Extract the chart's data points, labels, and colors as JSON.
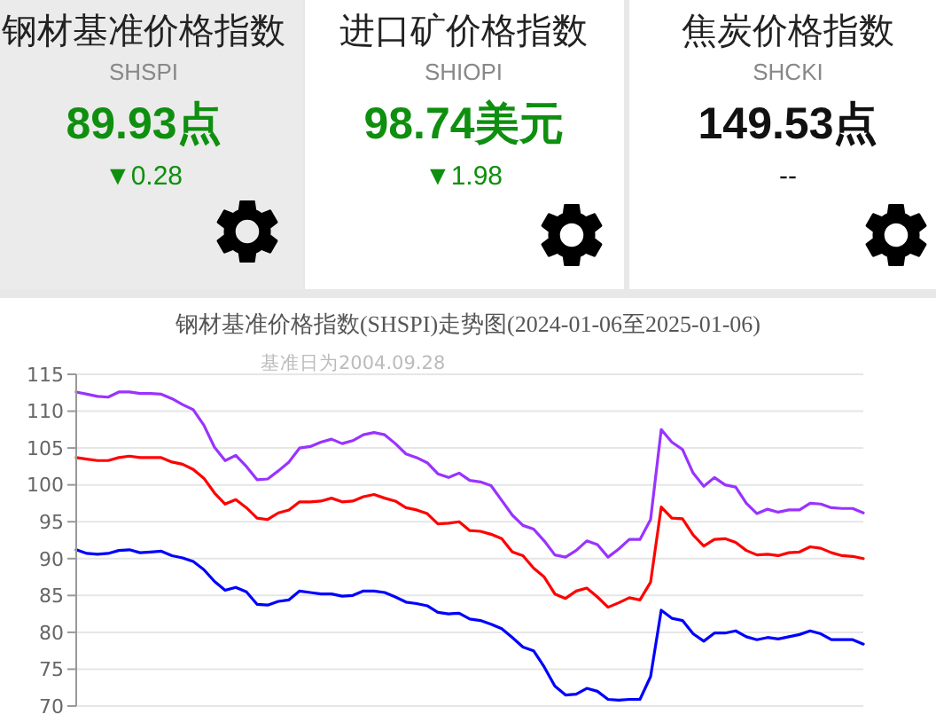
{
  "chart_data": [
    {
      "type": "other",
      "title": "钢材基准价格指数",
      "subtitle": "SHSPI",
      "annotations": [
        "89.93点",
        "▼0.28"
      ],
      "color": "#0f8f0f"
    },
    {
      "type": "other",
      "title": "进口矿价格指数",
      "subtitle": "SHIOPI",
      "annotations": [
        "98.74美元",
        "▼1.98"
      ],
      "color": "#0f8f0f"
    },
    {
      "type": "other",
      "title": "焦炭价格指数",
      "subtitle": "SHCKI",
      "annotations": [
        "149.53点",
        "--"
      ],
      "color": "#111111"
    },
    {
      "type": "line",
      "title": "钢材基准价格指数(SHSPI)走势图(2024-01-06至2025-01-06)",
      "subtitle": "基准日为2004.09.28",
      "categories": [
        null,
        null,
        null,
        null,
        null,
        null,
        null,
        null,
        null,
        null,
        null,
        null,
        null,
        null,
        null,
        null,
        null,
        null,
        null,
        null,
        null,
        null,
        null,
        null,
        null,
        null,
        null,
        null,
        null,
        null,
        null,
        null,
        null,
        null,
        null,
        null,
        null,
        null,
        null,
        null,
        null,
        null,
        null,
        null,
        null,
        null,
        null,
        null,
        null,
        null,
        null,
        null,
        null,
        null,
        null,
        null,
        null,
        null,
        null,
        null,
        null,
        null,
        null,
        null,
        null,
        null,
        null,
        null,
        null,
        null,
        null,
        null,
        null,
        null,
        null
      ],
      "series": [
        {
          "color": "#9933ff",
          "values": [
            112.6,
            112.3,
            112.0,
            111.9,
            112.6,
            112.6,
            112.4,
            112.4,
            112.3,
            111.7,
            110.9,
            110.2,
            108.1,
            105.1,
            103.3,
            104.0,
            102.5,
            100.7,
            100.8,
            101.9,
            103.1,
            105.0,
            105.2,
            105.8,
            106.2,
            105.6,
            106.0,
            106.8,
            107.1,
            106.8,
            105.6,
            104.2,
            103.7,
            103.0,
            101.5,
            101.0,
            101.6,
            100.6,
            100.4,
            99.9,
            97.9,
            95.9,
            94.5,
            94.0,
            92.4,
            90.5,
            90.2,
            91.1,
            92.4,
            91.9,
            90.2,
            91.3,
            92.6,
            92.6,
            95.3,
            107.5,
            105.8,
            104.8,
            101.6,
            99.8,
            101.0,
            100.0,
            99.7,
            97.5,
            96.1,
            96.7,
            96.3,
            96.6,
            96.6,
            97.5,
            97.4,
            96.9,
            96.8,
            96.8,
            96.2
          ]
        },
        {
          "color": "#ff0000",
          "values": [
            103.7,
            103.5,
            103.3,
            103.3,
            103.7,
            103.9,
            103.7,
            103.7,
            103.7,
            103.1,
            102.8,
            102.1,
            100.9,
            98.9,
            97.4,
            98.0,
            96.9,
            95.5,
            95.3,
            96.2,
            96.6,
            97.7,
            97.7,
            97.8,
            98.2,
            97.7,
            97.8,
            98.4,
            98.7,
            98.2,
            97.8,
            96.9,
            96.6,
            96.1,
            94.7,
            94.8,
            95.0,
            93.8,
            93.7,
            93.3,
            92.7,
            90.9,
            90.4,
            88.7,
            87.5,
            85.2,
            84.6,
            85.6,
            86.0,
            84.8,
            83.4,
            84.0,
            84.7,
            84.4,
            86.8,
            97.0,
            95.5,
            95.4,
            93.2,
            91.7,
            92.6,
            92.7,
            92.2,
            91.1,
            90.5,
            90.6,
            90.4,
            90.8,
            90.9,
            91.6,
            91.4,
            90.8,
            90.4,
            90.3,
            90.0
          ]
        },
        {
          "color": "#0000ff",
          "values": [
            91.2,
            90.7,
            90.6,
            90.7,
            91.1,
            91.2,
            90.8,
            90.9,
            91.0,
            90.4,
            90.1,
            89.6,
            88.5,
            86.9,
            85.7,
            86.1,
            85.5,
            83.8,
            83.7,
            84.2,
            84.4,
            85.6,
            85.4,
            85.2,
            85.2,
            84.9,
            85.0,
            85.6,
            85.6,
            85.4,
            84.8,
            84.1,
            83.9,
            83.6,
            82.7,
            82.5,
            82.6,
            81.8,
            81.6,
            81.1,
            80.5,
            79.3,
            78.0,
            77.5,
            75.3,
            72.7,
            71.5,
            71.6,
            72.4,
            72.0,
            70.9,
            70.8,
            70.9,
            70.9,
            74.0,
            83.0,
            81.9,
            81.6,
            79.8,
            78.8,
            79.9,
            79.9,
            80.2,
            79.4,
            79.0,
            79.3,
            79.1,
            79.4,
            79.7,
            80.2,
            79.8,
            79.0,
            79.0,
            79.0,
            78.4
          ]
        }
      ],
      "ylim": [
        70,
        115
      ],
      "yticks": [
        70,
        75,
        80,
        85,
        90,
        95,
        100,
        105,
        110,
        115
      ],
      "grid": "y"
    }
  ]
}
